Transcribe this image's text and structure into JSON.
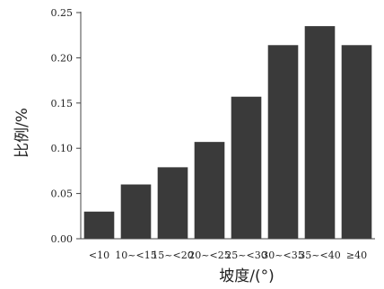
{
  "chart_data": {
    "type": "bar",
    "categories": [
      "<10",
      "10~<15",
      "15~<20",
      "20~<25",
      "25~<30",
      "30~<35",
      "35~<40",
      "≥40"
    ],
    "values": [
      0.03,
      0.06,
      0.079,
      0.107,
      0.157,
      0.214,
      0.235,
      0.214
    ],
    "xlabel": "坡度/(°)",
    "ylabel": "比例/%",
    "ylim": [
      0,
      0.25
    ],
    "yticks": [
      "0.00",
      "0.05",
      "0.10",
      "0.15",
      "0.20",
      "0.25"
    ],
    "grid": false,
    "bar_color": "#3a3a3a",
    "axis_color": "#444444"
  }
}
